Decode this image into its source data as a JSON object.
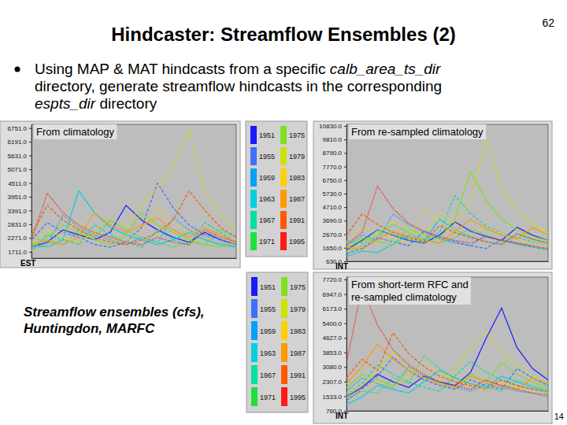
{
  "slide": {
    "title": "Hindcaster: Streamflow Ensembles (2)",
    "page_number": 62,
    "footer": 14,
    "bullet": [
      [
        {
          "text": "Using MAP & MAT hindcasts from a specific "
        },
        {
          "text": "calb_area_ts_dir",
          "italic": true
        }
      ],
      [
        {
          "text": "directory, generate streamflow hindcasts in the corresponding"
        }
      ],
      [
        {
          "text": "espts_dir",
          "italic": true
        },
        {
          "text": " directory"
        }
      ]
    ],
    "caption": [
      "Streamflow ensembles (cfs),",
      "Huntingdon, MARFC"
    ]
  },
  "chart_data": [
    {
      "type": "line",
      "title": "From climatology",
      "annotations": [
        "EST"
      ],
      "tick_labels": "y",
      "legend": "right",
      "x": [
        1,
        2,
        3,
        4,
        5,
        6,
        7,
        8,
        9,
        10,
        11,
        12,
        13,
        14
      ],
      "xlim": [
        1,
        14
      ],
      "ylim": [
        1450,
        6900
      ],
      "yticks": [
        {
          "value": 6751,
          "label": "6751.0"
        },
        {
          "value": 6191,
          "label": "6191.0"
        },
        {
          "value": 5631,
          "label": "5631.0"
        },
        {
          "value": 5071,
          "label": "5071.0"
        },
        {
          "value": 4511,
          "label": "4511.0"
        },
        {
          "value": 3951,
          "label": "3951.0"
        },
        {
          "value": 3391,
          "label": "3391.0"
        },
        {
          "value": 2831,
          "label": "2831.0"
        },
        {
          "value": 2271,
          "label": "2271.0"
        },
        {
          "value": 1711,
          "label": "1711.0"
        }
      ],
      "series": [
        {
          "name": "1951",
          "color": "#1a1aff",
          "values": [
            1900,
            2100,
            2600,
            2400,
            2200,
            2500,
            3600,
            3000,
            2600,
            2300,
            2100,
            2500,
            2200,
            2000
          ]
        },
        {
          "name": "1955",
          "color": "#3f6fff",
          "values": [
            2200,
            2900,
            2500,
            2300,
            2000,
            1900,
            2100,
            2700,
            4500,
            3500,
            2800,
            2400,
            2200,
            2000
          ]
        },
        {
          "name": "1959",
          "color": "#00a0ff",
          "values": [
            1800,
            2000,
            3200,
            2700,
            2400,
            2200,
            2000,
            2300,
            2100,
            3100,
            2600,
            2300,
            2100,
            1900
          ]
        },
        {
          "name": "1963",
          "color": "#00d0e0",
          "values": [
            2000,
            1900,
            2200,
            4200,
            3300,
            2700,
            2400,
            2200,
            2000,
            2200,
            2500,
            2200,
            2000,
            1900
          ]
        },
        {
          "name": "1967",
          "color": "#00e0a0",
          "values": [
            1750,
            2400,
            2200,
            2000,
            2800,
            2400,
            2100,
            1900,
            2600,
            2200,
            2000,
            2900,
            2500,
            2100
          ]
        },
        {
          "name": "1971",
          "color": "#20e040",
          "values": [
            2300,
            2100,
            2000,
            2600,
            2300,
            3000,
            2600,
            2300,
            2100,
            1900,
            2100,
            2000,
            2600,
            2300
          ]
        },
        {
          "name": "1975",
          "color": "#80e020",
          "values": [
            1900,
            2300,
            2800,
            2500,
            2200,
            2000,
            2400,
            3300,
            2800,
            2500,
            2200,
            2000,
            1900,
            2100
          ]
        },
        {
          "name": "1979",
          "color": "#d0e000",
          "values": [
            2100,
            2600,
            2300,
            2100,
            2500,
            3100,
            2700,
            3600,
            4300,
            5200,
            6700,
            4200,
            3200,
            2600
          ]
        },
        {
          "name": "1983",
          "color": "#ffd000",
          "values": [
            1800,
            1900,
            2400,
            2900,
            2500,
            2300,
            2100,
            2600,
            3500,
            2900,
            2500,
            2300,
            2100,
            2000
          ]
        },
        {
          "name": "1987",
          "color": "#ff9a00",
          "values": [
            2000,
            2200,
            2000,
            2300,
            3300,
            2800,
            2500,
            2800,
            3100,
            2600,
            2300,
            2700,
            2400,
            2100
          ]
        },
        {
          "name": "1991",
          "color": "#ff5a00",
          "values": [
            2400,
            3600,
            3000,
            2600,
            2300,
            2100,
            2000,
            2200,
            2500,
            3000,
            4200,
            3400,
            2700,
            2300
          ]
        },
        {
          "name": "1995",
          "color": "#ff1a1a",
          "values": [
            2200,
            4100,
            3300,
            2800,
            2500,
            2300,
            2100,
            2000,
            2300,
            2100,
            2000,
            2600,
            2300,
            2100
          ]
        }
      ]
    },
    {
      "type": "line",
      "title": "From re-sampled climatology",
      "annotations": [
        "INT"
      ],
      "tick_labels": "y",
      "x": [
        1,
        2,
        3,
        4,
        5,
        6,
        7,
        8,
        9,
        10,
        11,
        12,
        13,
        14
      ],
      "xlim": [
        1,
        14
      ],
      "ylim": [
        630,
        10950
      ],
      "yticks": [
        {
          "value": 10830,
          "label": "10830.0"
        },
        {
          "value": 9810,
          "label": "9810.0"
        },
        {
          "value": 8790,
          "label": "8790.0"
        },
        {
          "value": 7770,
          "label": "7770.0"
        },
        {
          "value": 6750,
          "label": "6750.0"
        },
        {
          "value": 5730,
          "label": "5730.0"
        },
        {
          "value": 4710,
          "label": "4710.0"
        },
        {
          "value": 3690,
          "label": "3690.0"
        },
        {
          "value": 2670,
          "label": "2670.0"
        },
        {
          "value": 1650,
          "label": "1650.0"
        },
        {
          "value": 630,
          "label": "630.0"
        }
      ],
      "series": [
        {
          "color": "#1a1aff",
          "values": [
            1500,
            2200,
            3000,
            2600,
            2200,
            2000,
            2600,
            3600,
            2900,
            2500,
            2200,
            3200,
            2600,
            2200
          ]
        },
        {
          "color": "#3f6fff",
          "values": [
            1200,
            1600,
            2400,
            2100,
            1800,
            2900,
            2400,
            2100,
            1800,
            1600,
            2300,
            2000,
            1700,
            1500
          ]
        },
        {
          "color": "#00a0ff",
          "values": [
            1800,
            2600,
            2200,
            4200,
            3400,
            2800,
            2300,
            2000,
            1800,
            2600,
            2200,
            1900,
            1700,
            1500
          ]
        },
        {
          "color": "#00d0e0",
          "values": [
            1000,
            1400,
            1300,
            1900,
            2600,
            2200,
            3800,
            3000,
            2500,
            2100,
            1900,
            2700,
            2300,
            2000
          ]
        },
        {
          "color": "#00e0a0",
          "values": [
            2200,
            2000,
            3000,
            2600,
            2300,
            2000,
            2800,
            5600,
            4200,
            3300,
            2700,
            2400,
            2100,
            1800
          ]
        },
        {
          "color": "#20e040",
          "values": [
            1400,
            1800,
            2600,
            3400,
            2800,
            2300,
            2000,
            2400,
            3100,
            2600,
            2200,
            1900,
            1700,
            1500
          ]
        },
        {
          "color": "#80e020",
          "values": [
            1600,
            2400,
            2100,
            1900,
            3100,
            2600,
            2300,
            3900,
            7400,
            5200,
            3800,
            3000,
            2500,
            2200
          ]
        },
        {
          "color": "#d0e000",
          "values": [
            1300,
            2100,
            2800,
            3600,
            3000,
            2600,
            4300,
            3500,
            5100,
            9800,
            6200,
            4400,
            3400,
            2800
          ]
        },
        {
          "color": "#ffd000",
          "values": [
            2000,
            3300,
            2700,
            2300,
            2100,
            4600,
            3600,
            3000,
            2600,
            3200,
            2700,
            2300,
            2000,
            1800
          ]
        },
        {
          "color": "#ff9a00",
          "values": [
            1700,
            1500,
            2300,
            2900,
            2500,
            2200,
            2000,
            2900,
            3800,
            3100,
            2600,
            2300,
            3200,
            2600
          ]
        },
        {
          "color": "#ff5a00",
          "values": [
            2600,
            4200,
            3400,
            2800,
            2400,
            2100,
            3300,
            2800,
            2400,
            2100,
            1900,
            2700,
            2300,
            2000
          ]
        },
        {
          "color": "#ff1a1a",
          "values": [
            1900,
            2800,
            6300,
            4600,
            3500,
            2900,
            2500,
            2200,
            2000,
            2500,
            2200,
            2000,
            1800,
            1600
          ]
        }
      ]
    },
    {
      "type": "line",
      "title": "From short-term RFC and re-sampled climatology",
      "annotations": [
        "INT"
      ],
      "tick_labels": "y",
      "legend": "left",
      "x": [
        1,
        2,
        3,
        4,
        5,
        6,
        7,
        8,
        9,
        10,
        11,
        12,
        13,
        14
      ],
      "xlim": [
        1,
        14
      ],
      "ylim": [
        760,
        7850
      ],
      "yticks": [
        {
          "value": 7720,
          "label": "7720.0"
        },
        {
          "value": 6947,
          "label": "6947.0"
        },
        {
          "value": 6173,
          "label": "6173.0"
        },
        {
          "value": 5400,
          "label": "5400.0"
        },
        {
          "value": 4627,
          "label": "4627.0"
        },
        {
          "value": 3853,
          "label": "3853.0"
        },
        {
          "value": 3080,
          "label": "3080.0"
        },
        {
          "value": 2307,
          "label": "2307.0"
        },
        {
          "value": 1533,
          "label": "1533.0"
        },
        {
          "value": 760,
          "label": "760.0"
        }
      ],
      "series": [
        {
          "name": "1951",
          "color": "#1a1aff",
          "values": [
            1500,
            2000,
            2700,
            2300,
            2000,
            2600,
            2300,
            2100,
            2800,
            4600,
            6200,
            4100,
            3000,
            2400
          ]
        },
        {
          "name": "1955",
          "color": "#3f6fff",
          "values": [
            1300,
            1900,
            2600,
            3600,
            2900,
            2400,
            2100,
            1900,
            2400,
            2100,
            1900,
            3000,
            2500,
            2100
          ]
        },
        {
          "name": "1959",
          "color": "#00a0ff",
          "values": [
            1800,
            2500,
            2200,
            2000,
            3100,
            2600,
            2300,
            2000,
            1800,
            2200,
            2000,
            1800,
            1700,
            1500
          ]
        },
        {
          "name": "1963",
          "color": "#00d0e0",
          "values": [
            1100,
            1500,
            2100,
            1900,
            1700,
            2300,
            2900,
            2500,
            2200,
            2000,
            2600,
            2300,
            2000,
            1800
          ]
        },
        {
          "name": "1967",
          "color": "#00e0a0",
          "values": [
            1600,
            2200,
            3200,
            2700,
            2300,
            2000,
            1800,
            2600,
            3400,
            2800,
            2400,
            2100,
            1900,
            1700
          ]
        },
        {
          "name": "1971",
          "color": "#20e040",
          "values": [
            1400,
            1800,
            1700,
            2500,
            2200,
            3700,
            3000,
            2500,
            2200,
            2000,
            1800,
            2400,
            2100,
            1900
          ]
        },
        {
          "name": "1975",
          "color": "#80e020",
          "values": [
            2000,
            2700,
            2400,
            2100,
            2900,
            2500,
            2200,
            2000,
            2700,
            2300,
            3300,
            2700,
            2300,
            2000
          ]
        },
        {
          "name": "1979",
          "color": "#d0e000",
          "values": [
            1700,
            2100,
            2900,
            3900,
            3200,
            2700,
            2300,
            2900,
            4100,
            5000,
            3900,
            3100,
            2600,
            2200
          ]
        },
        {
          "name": "1983",
          "color": "#ffd000",
          "values": [
            1500,
            1900,
            2300,
            2000,
            2600,
            3300,
            2800,
            2400,
            2100,
            1900,
            2300,
            2000,
            1800,
            1700
          ]
        },
        {
          "name": "1987",
          "color": "#ff9a00",
          "values": [
            2200,
            3100,
            4300,
            3500,
            2900,
            2500,
            2200,
            2000,
            2600,
            2300,
            2100,
            1900,
            2500,
            2200
          ]
        },
        {
          "name": "1991",
          "color": "#ff5a00",
          "values": [
            2500,
            3500,
            2900,
            4900,
            3800,
            3100,
            2600,
            2300,
            2100,
            1900,
            2400,
            2100,
            1900,
            1800
          ]
        },
        {
          "name": "1995",
          "color": "#ff1a1a",
          "values": [
            3300,
            7300,
            5300,
            4000,
            3200,
            2700,
            2300,
            2100,
            1900,
            2400,
            2100,
            1900,
            1700,
            1600
          ]
        }
      ]
    }
  ]
}
